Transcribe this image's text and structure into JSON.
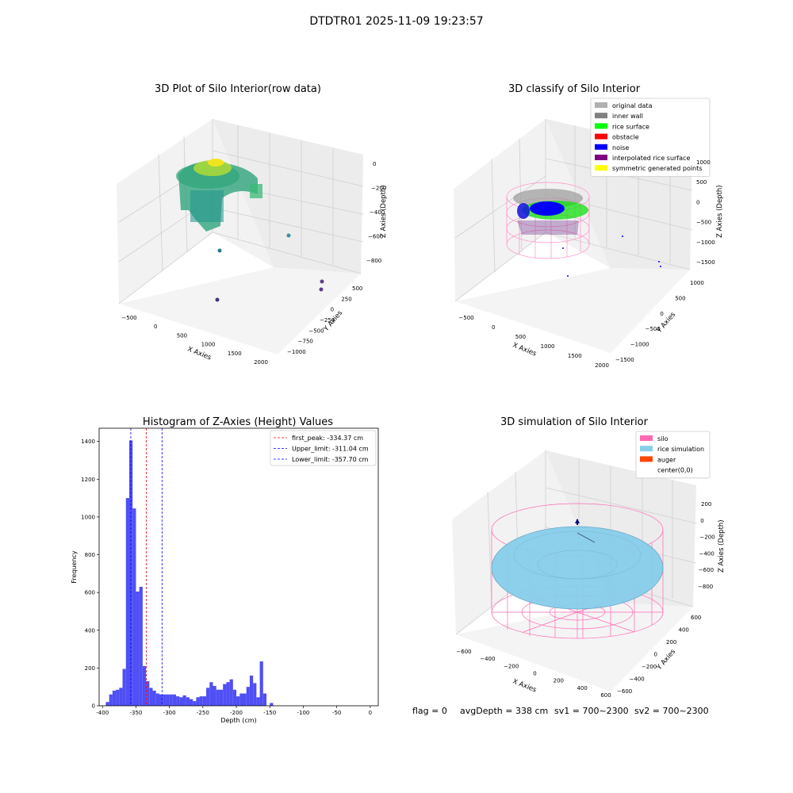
{
  "figure_title": "DTDTR01 2025-11-09 19:23:57",
  "status_line": {
    "flag": "flag = 0",
    "avg_depth": "avgDepth = 338 cm",
    "sv1": "sv1 = 700~2300",
    "sv2": "sv2 = 700~2300"
  },
  "colors": {
    "histogram_bar": "#4f4ff5",
    "first_peak_line": "#ff0000",
    "limit_line": "#0000ff",
    "silo": "#ff69b4",
    "rice_simulation": "#87ceeb",
    "auger": "#ff4500"
  },
  "chart_data": [
    {
      "type": "scatter",
      "projection": "3d",
      "title": "3D Plot of Silo Interior(row data)",
      "xlabel": "X Axies",
      "ylabel": "Y Axies",
      "zlabel": "Z Axies (Depth)",
      "x_ticks": [
        "−500",
        "0",
        "500",
        "1000",
        "1500",
        "2000"
      ],
      "y_ticks": [
        "500",
        "250",
        "0",
        "−250",
        "−500",
        "−750",
        "−1000"
      ],
      "z_ticks": [
        "0",
        "−200",
        "−400",
        "−600",
        "−800"
      ],
      "xlim": [
        -600,
        2100
      ],
      "ylim": [
        -1100,
        600
      ],
      "zlim": [
        -900,
        50
      ],
      "colormap": "viridis",
      "outlier_points": [
        {
          "x": 1250,
          "y": -150,
          "z": -550
        },
        {
          "x": 500,
          "y": -700,
          "z": -650
        },
        {
          "x": 1700,
          "y": 500,
          "z": -820
        },
        {
          "x": 1700,
          "y": 350,
          "z": -850
        },
        {
          "x": 600,
          "y": -1000,
          "z": -880
        }
      ]
    },
    {
      "type": "scatter",
      "projection": "3d",
      "title": "3D classify of Silo Interior",
      "xlabel": "X Axies",
      "ylabel": "Y Axies",
      "zlabel": "Z Axies (Depth)",
      "x_ticks": [
        "−500",
        "0",
        "500",
        "1000",
        "1500",
        "2000"
      ],
      "y_ticks": [
        "1000",
        "500",
        "0",
        "−500",
        "−1000",
        "−1500"
      ],
      "z_ticks": [
        "1000",
        "500",
        "0",
        "−500",
        "−1000",
        "−1500"
      ],
      "legend_position": "top-right",
      "legend": [
        {
          "label": "original data",
          "color": "#b0b0b0"
        },
        {
          "label": "inner wall",
          "color": "#808080"
        },
        {
          "label": "rice surface",
          "color": "#00ff00"
        },
        {
          "label": "obstacle",
          "color": "#ff0000"
        },
        {
          "label": "noise",
          "color": "#0000ff"
        },
        {
          "label": "interpolated rice surface",
          "color": "#800080"
        },
        {
          "label": "symmetric generated points",
          "color": "#ffff00"
        }
      ]
    },
    {
      "type": "bar",
      "title": "Histogram of Z-Axies (Height) Values",
      "xlabel": "Depth (cm)",
      "ylabel": "Frequency",
      "xlim": [
        -405,
        12
      ],
      "ylim": [
        0,
        1470
      ],
      "x_ticks": [
        -400,
        -350,
        -300,
        -250,
        -200,
        -150,
        -100,
        -50,
        0
      ],
      "y_ticks": [
        0,
        200,
        400,
        600,
        800,
        1000,
        1200,
        1400
      ],
      "bin_width": 5,
      "bins": [
        {
          "x": -395,
          "v": 20
        },
        {
          "x": -390,
          "v": 60
        },
        {
          "x": -385,
          "v": 80
        },
        {
          "x": -380,
          "v": 85
        },
        {
          "x": -375,
          "v": 95
        },
        {
          "x": -370,
          "v": 195
        },
        {
          "x": -365,
          "v": 1100
        },
        {
          "x": -360,
          "v": 1405
        },
        {
          "x": -355,
          "v": 1045
        },
        {
          "x": -350,
          "v": 605
        },
        {
          "x": -345,
          "v": 630
        },
        {
          "x": -340,
          "v": 210
        },
        {
          "x": -335,
          "v": 130
        },
        {
          "x": -330,
          "v": 95
        },
        {
          "x": -325,
          "v": 80
        },
        {
          "x": -320,
          "v": 65
        },
        {
          "x": -315,
          "v": 60
        },
        {
          "x": -310,
          "v": 60
        },
        {
          "x": -305,
          "v": 60
        },
        {
          "x": -300,
          "v": 60
        },
        {
          "x": -295,
          "v": 60
        },
        {
          "x": -290,
          "v": 50
        },
        {
          "x": -285,
          "v": 45
        },
        {
          "x": -280,
          "v": 55
        },
        {
          "x": -275,
          "v": 45
        },
        {
          "x": -270,
          "v": 35
        },
        {
          "x": -265,
          "v": 25
        },
        {
          "x": -260,
          "v": 45
        },
        {
          "x": -255,
          "v": 50
        },
        {
          "x": -250,
          "v": 50
        },
        {
          "x": -245,
          "v": 95
        },
        {
          "x": -240,
          "v": 125
        },
        {
          "x": -235,
          "v": 105
        },
        {
          "x": -230,
          "v": 85
        },
        {
          "x": -225,
          "v": 85
        },
        {
          "x": -220,
          "v": 115
        },
        {
          "x": -215,
          "v": 125
        },
        {
          "x": -210,
          "v": 140
        },
        {
          "x": -205,
          "v": 85
        },
        {
          "x": -200,
          "v": 50
        },
        {
          "x": -195,
          "v": 65
        },
        {
          "x": -190,
          "v": 65
        },
        {
          "x": -185,
          "v": 100
        },
        {
          "x": -180,
          "v": 160
        },
        {
          "x": -175,
          "v": 120
        },
        {
          "x": -170,
          "v": 45
        },
        {
          "x": -165,
          "v": 235
        },
        {
          "x": -160,
          "v": 65
        },
        {
          "x": -155,
          "v": 0
        },
        {
          "x": -150,
          "v": 15
        }
      ],
      "lines": [
        {
          "label": "first_peak: -334.37 cm",
          "x": -334.37,
          "color": "#ff0000"
        },
        {
          "label": "Upper_limit: -311.04 cm",
          "x": -311.04,
          "color": "#0000ff"
        },
        {
          "label": "Lower_limit: -357.70 cm",
          "x": -357.7,
          "color": "#0000ff"
        }
      ],
      "legend_position": "top-right"
    },
    {
      "type": "surface",
      "projection": "3d",
      "title": "3D simulation of Silo Interior",
      "xlabel": "X Axies",
      "ylabel": "Y Axies",
      "zlabel": "Z Axies (Depth)",
      "x_ticks": [
        "−600",
        "−400",
        "−200",
        "0",
        "200",
        "400",
        "600"
      ],
      "y_ticks": [
        "600",
        "400",
        "200",
        "0",
        "−200",
        "−400",
        "−600"
      ],
      "z_ticks": [
        "200",
        "0",
        "−200",
        "−400",
        "−600",
        "−800"
      ],
      "legend_position": "top-right",
      "legend": [
        {
          "label": "silo",
          "color": "#ff69b4"
        },
        {
          "label": "rice simulation",
          "color": "#87ceeb"
        },
        {
          "label": "auger",
          "color": "#ff4500"
        },
        {
          "label": "center(0,0)",
          "color": ""
        }
      ]
    }
  ]
}
